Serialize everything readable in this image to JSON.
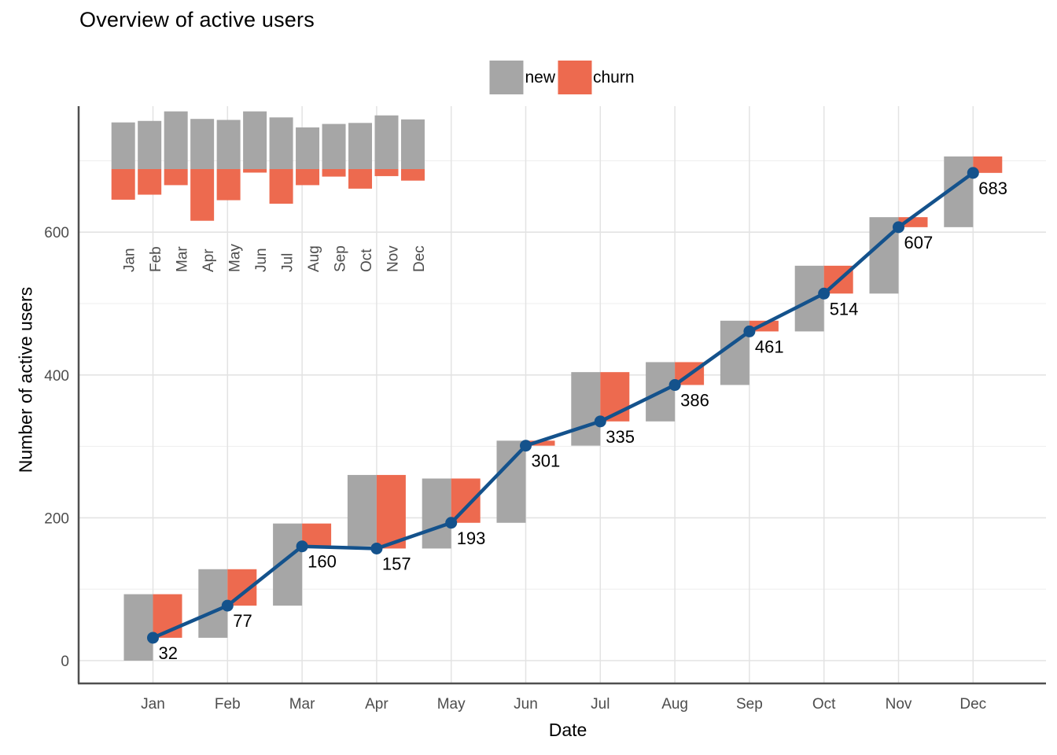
{
  "title": "Overview of active users",
  "legend": {
    "items": [
      {
        "label": "new",
        "color": "#A6A6A6"
      },
      {
        "label": "churn",
        "color": "#ED6A4F"
      }
    ]
  },
  "y_axis": {
    "title": "Number of active users",
    "ticks": [
      0,
      200,
      400,
      600
    ]
  },
  "x_axis": {
    "title": "Date"
  },
  "chart_data": {
    "type": "line+bar",
    "title": "Overview of active users",
    "xlabel": "Date",
    "ylabel": "Number of active users",
    "categories": [
      "Jan",
      "Feb",
      "Mar",
      "Apr",
      "May",
      "Jun",
      "Jul",
      "Aug",
      "Sep",
      "Oct",
      "Nov",
      "Dec"
    ],
    "line_series": {
      "name": "active users",
      "color": "#14528C",
      "values": [
        32,
        77,
        160,
        157,
        193,
        301,
        335,
        386,
        461,
        514,
        607,
        683
      ],
      "point_labels": [
        "32",
        "77",
        "160",
        "157",
        "193",
        "301",
        "335",
        "386",
        "461",
        "514",
        "607",
        "683"
      ]
    },
    "series": [
      {
        "name": "new",
        "type": "waterfall-bar",
        "color": "#A6A6A6",
        "values": [
          93,
          96,
          115,
          100,
          98,
          115,
          103,
          83,
          90,
          92,
          107,
          99
        ]
      },
      {
        "name": "churn",
        "type": "waterfall-bar",
        "color": "#ED6A4F",
        "values": [
          61,
          51,
          32,
          103,
          62,
          7,
          69,
          32,
          15,
          39,
          14,
          23
        ]
      }
    ],
    "inset": {
      "type": "diverging-bar",
      "description": "new users upward (gray), churn downward (red), same monthly data",
      "categories": [
        "Jan",
        "Feb",
        "Mar",
        "Apr",
        "May",
        "Jun",
        "Jul",
        "Aug",
        "Sep",
        "Oct",
        "Nov",
        "Dec"
      ]
    },
    "yticks": [
      0,
      200,
      400,
      600
    ],
    "ylim": [
      0,
      776
    ],
    "grid": true,
    "legend_position": "top-center",
    "colors": {
      "grid_major": "#E3E3E3",
      "grid_minor": "#EFEFEF",
      "axis_line": "#4F4F4F",
      "tick_label": "#4D4D4D",
      "text": "#000000"
    }
  }
}
